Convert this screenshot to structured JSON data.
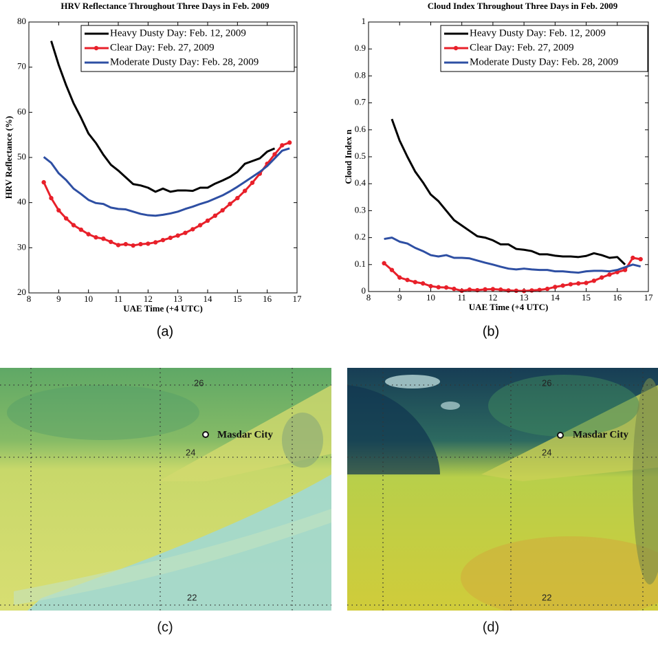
{
  "chart_data": [
    {
      "type": "line",
      "caption": "(a)",
      "title": "HRV Reflectance Throughout Three Days in Feb. 2009",
      "xlabel": "UAE Time (+4 UTC)",
      "ylabel": "HRV Reflectance (%)",
      "x": [
        8.5,
        8.75,
        9,
        9.25,
        9.5,
        9.75,
        10,
        10.25,
        10.5,
        10.75,
        11,
        11.25,
        11.5,
        11.75,
        12,
        12.25,
        12.5,
        12.75,
        13,
        13.25,
        13.5,
        13.75,
        14,
        14.25,
        14.5,
        14.75,
        15,
        15.25,
        15.5,
        15.75,
        16,
        16.25,
        16.5,
        16.75
      ],
      "series": [
        {
          "name": "Heavy Dusty Day: Feb. 12, 2009",
          "color": "#000000",
          "marker": false,
          "values": [
            null,
            75.8,
            70.5,
            66,
            62,
            58.8,
            55.3,
            53.2,
            50.6,
            48.4,
            47.1,
            45.6,
            44.1,
            43.8,
            43.3,
            42.4,
            43.1,
            42.4,
            42.7,
            42.7,
            42.6,
            43.3,
            43.3,
            44.2,
            44.9,
            45.7,
            46.8,
            48.6,
            49.2,
            49.8,
            51.3,
            52,
            null,
            null
          ]
        },
        {
          "name": "Clear Day: Feb. 27, 2009",
          "color": "#e8202a",
          "marker": true,
          "values": [
            44.5,
            41,
            38.3,
            36.5,
            35,
            34,
            33,
            32.3,
            32,
            31.3,
            30.6,
            30.8,
            30.5,
            30.8,
            30.9,
            31.2,
            31.7,
            32.2,
            32.7,
            33.3,
            34.1,
            35,
            36,
            37.1,
            38.3,
            39.7,
            41,
            42.6,
            44.4,
            46.4,
            48.6,
            50.7,
            52.7,
            53.3
          ]
        },
        {
          "name": "Moderate Dusty Day: Feb. 28, 2009",
          "color": "#2e4fa3",
          "marker": false,
          "values": [
            50.1,
            48.8,
            46.5,
            45,
            43.1,
            41.9,
            40.6,
            39.9,
            39.7,
            38.9,
            38.6,
            38.5,
            38,
            37.5,
            37.2,
            37.1,
            37.3,
            37.6,
            38,
            38.6,
            39.1,
            39.7,
            40.2,
            40.9,
            41.6,
            42.5,
            43.5,
            44.6,
            45.7,
            46.8,
            48.1,
            49.8,
            51.5,
            52
          ]
        }
      ],
      "xlim": [
        8,
        17
      ],
      "xticks": [
        8,
        9,
        10,
        11,
        12,
        13,
        14,
        15,
        16,
        17
      ],
      "ylim": [
        20,
        80
      ],
      "yticks": [
        20,
        30,
        40,
        50,
        60,
        70,
        80
      ],
      "legend": "upper right",
      "grid": false
    },
    {
      "type": "line",
      "caption": "(b)",
      "title": "Cloud Index Throughout Three Days in Feb. 2009",
      "xlabel": "UAE Time (+4 UTC)",
      "ylabel": "Cloud Index n",
      "x": [
        8.5,
        8.75,
        9,
        9.25,
        9.5,
        9.75,
        10,
        10.25,
        10.5,
        10.75,
        11,
        11.25,
        11.5,
        11.75,
        12,
        12.25,
        12.5,
        12.75,
        13,
        13.25,
        13.5,
        13.75,
        14,
        14.25,
        14.5,
        14.75,
        15,
        15.25,
        15.5,
        15.75,
        16,
        16.25,
        16.5,
        16.75
      ],
      "series": [
        {
          "name": "Heavy Dusty Day: Feb. 12, 2009",
          "color": "#000000",
          "marker": false,
          "values": [
            null,
            0.64,
            0.56,
            0.5,
            0.445,
            0.405,
            0.36,
            0.335,
            0.3,
            0.265,
            0.245,
            0.225,
            0.205,
            0.2,
            0.19,
            0.175,
            0.175,
            0.158,
            0.155,
            0.15,
            0.138,
            0.138,
            0.133,
            0.13,
            0.13,
            0.128,
            0.132,
            0.142,
            0.135,
            0.125,
            0.128,
            0.1,
            null,
            null
          ]
        },
        {
          "name": "Clear Day: Feb. 27, 2009",
          "color": "#e8202a",
          "marker": true,
          "values": [
            0.105,
            0.08,
            0.052,
            0.043,
            0.035,
            0.03,
            0.02,
            0.016,
            0.015,
            0.01,
            0.003,
            0.007,
            0.005,
            0.008,
            0.009,
            0.007,
            0.004,
            0.003,
            0.002,
            0.004,
            0.006,
            0.01,
            0.017,
            0.022,
            0.027,
            0.03,
            0.032,
            0.04,
            0.052,
            0.063,
            0.072,
            0.08,
            0.125,
            0.12
          ]
        },
        {
          "name": "Moderate Dusty Day: Feb. 28, 2009",
          "color": "#2e4fa3",
          "marker": false,
          "values": [
            0.195,
            0.2,
            0.185,
            0.178,
            0.162,
            0.15,
            0.135,
            0.13,
            0.135,
            0.125,
            0.125,
            0.123,
            0.115,
            0.107,
            0.1,
            0.092,
            0.085,
            0.082,
            0.085,
            0.082,
            0.08,
            0.08,
            0.075,
            0.075,
            0.072,
            0.07,
            0.075,
            0.077,
            0.077,
            0.075,
            0.08,
            0.09,
            0.1,
            0.093
          ]
        }
      ],
      "xlim": [
        8,
        17
      ],
      "xticks": [
        8,
        9,
        10,
        11,
        12,
        13,
        14,
        15,
        16,
        17
      ],
      "ylim": [
        0,
        1
      ],
      "yticks": [
        0,
        0.1,
        0.2,
        0.3,
        0.4,
        0.5,
        0.6,
        0.7,
        0.8,
        0.9,
        1
      ],
      "legend": "upper right",
      "grid": false
    }
  ],
  "images": [
    {
      "caption": "(c)",
      "lat_labels": [
        "26",
        "24",
        "22"
      ],
      "place": "Masdar City"
    },
    {
      "caption": "(d)",
      "lat_labels": [
        "26",
        "24",
        "22"
      ],
      "place": "Masdar City"
    }
  ]
}
